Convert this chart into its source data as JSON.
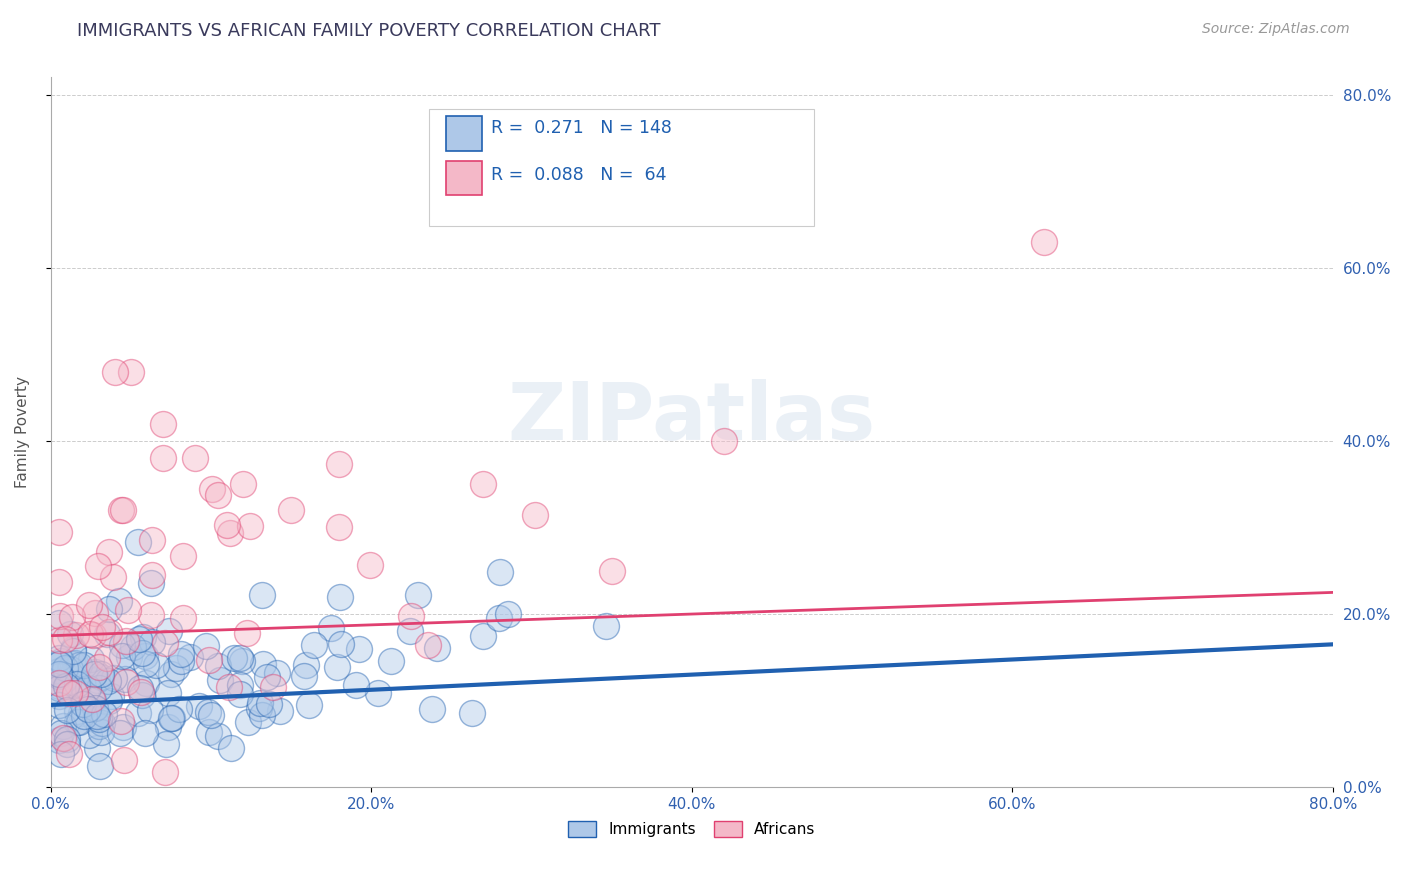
{
  "title": "IMMIGRANTS VS AFRICAN FAMILY POVERTY CORRELATION CHART",
  "source": "Source: ZipAtlas.com",
  "ylabel": "Family Poverty",
  "title_color": "#3a3a5c",
  "title_fontsize": 13,
  "background_color": "#ffffff",
  "plot_bg_color": "#ffffff",
  "immigrants_color": "#aec8e8",
  "africans_color": "#f4b8c8",
  "immigrants_line_color": "#2060b0",
  "africans_line_color": "#e04070",
  "immigrants_R": 0.271,
  "immigrants_N": 148,
  "africans_R": 0.088,
  "africans_N": 64,
  "xmin": 0.0,
  "xmax": 0.8,
  "ymin": 0.0,
  "ymax": 0.82,
  "ytick_labels": [
    "0.0%",
    "20.0%",
    "40.0%",
    "60.0%",
    "80.0%"
  ],
  "ytick_vals": [
    0.0,
    0.2,
    0.4,
    0.6,
    0.8
  ],
  "xtick_labels": [
    "0.0%",
    "20.0%",
    "40.0%",
    "60.0%",
    "80.0%"
  ],
  "xtick_vals": [
    0.0,
    0.2,
    0.4,
    0.6,
    0.8
  ],
  "watermark": "ZIPatlas",
  "imm_line_y0": 0.095,
  "imm_line_y1": 0.165,
  "afr_line_y0": 0.175,
  "afr_line_y1": 0.225
}
